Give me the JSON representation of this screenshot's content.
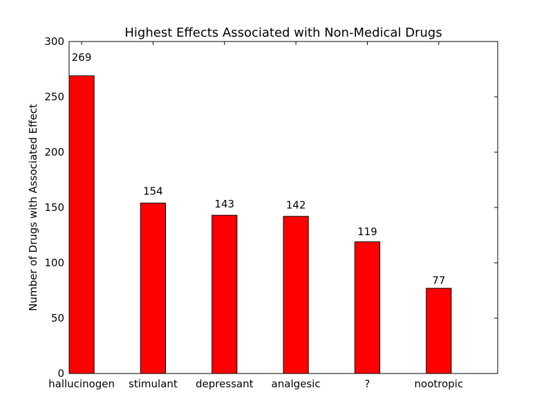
{
  "chart_data": {
    "type": "bar",
    "title": "Highest Effects Associated with Non-Medical Drugs",
    "xlabel": "",
    "ylabel": "Number of Drugs with Associated Effect",
    "categories": [
      "hallucinogen",
      "stimulant",
      "depressant",
      "analgesic",
      "?",
      "nootropic"
    ],
    "values": [
      269,
      154,
      143,
      142,
      119,
      77
    ],
    "data_labels": [
      "269",
      "154",
      "143",
      "142",
      "119",
      "77"
    ],
    "ylim": [
      0,
      300
    ],
    "yticks": [
      0,
      50,
      100,
      150,
      200,
      250,
      300
    ],
    "ytick_labels": [
      "0",
      "50",
      "100",
      "150",
      "200",
      "250",
      "300"
    ],
    "bar_color": "#ff0000",
    "edge_color": "#000000",
    "grid": false,
    "legend": "none"
  }
}
